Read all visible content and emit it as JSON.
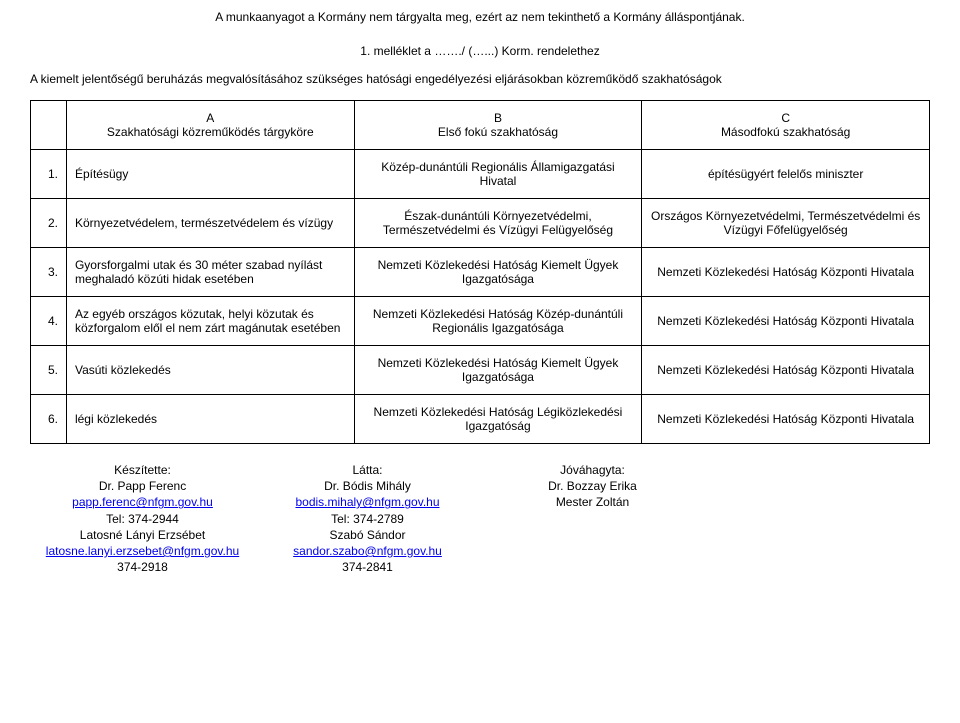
{
  "header_note": "A munkaanyagot a Kormány nem tárgyalta meg, ezért az nem tekinthető a Kormány álláspontjának.",
  "attachment": "1. melléklet a ……./ (…...) Korm. rendelethez",
  "intro": "A kiemelt jelentőségű beruházás megvalósításához szükséges hatósági engedélyezési eljárásokban közreműködő szakhatóságok",
  "table": {
    "head": {
      "a": "A\nSzakhatósági közreműködés tárgyköre",
      "b": "B\nElső fokú szakhatóság",
      "c": "C\nMásodfokú szakhatóság"
    },
    "rows": [
      {
        "n": "1.",
        "a": "Építésügy",
        "b": "Közép-dunántúli Regionális Államigazgatási Hivatal",
        "c": "építésügyért felelős miniszter"
      },
      {
        "n": "2.",
        "a": "Környezetvédelem, természetvédelem és vízügy",
        "b": "Észak-dunántúli Környezetvédelmi, Természetvédelmi és Vízügyi Felügyelőség",
        "c": "Országos Környezetvédelmi, Természetvédelmi és Vízügyi Főfelügyelőség"
      },
      {
        "n": "3.",
        "a": "Gyorsforgalmi utak és 30 méter szabad nyílást meghaladó közúti hidak esetében",
        "b": "Nemzeti Közlekedési Hatóság Kiemelt Ügyek Igazgatósága",
        "c": "Nemzeti Közlekedési Hatóság Központi Hivatala"
      },
      {
        "n": "4.",
        "a": "Az egyéb országos közutak, helyi közutak és közforgalom elől el nem zárt magánutak esetében",
        "b": "Nemzeti Közlekedési Hatóság Közép-dunántúli Regionális Igazgatósága",
        "c": "Nemzeti Közlekedési Hatóság Központi Hivatala"
      },
      {
        "n": "5.",
        "a": "Vasúti közlekedés",
        "b": "Nemzeti Közlekedési Hatóság Kiemelt Ügyek Igazgatósága",
        "c": "Nemzeti Közlekedési Hatóság Központi Hivatala"
      },
      {
        "n": "6.",
        "a": "légi közlekedés",
        "b": "Nemzeti Közlekedési Hatóság Légiközlekedési Igazgatóság",
        "c": "Nemzeti Közlekedési Hatóság Központi Hivatala"
      }
    ]
  },
  "footer": {
    "col1": {
      "l1": "Készítette:",
      "l2": "Dr. Papp Ferenc",
      "l3_link": "papp.ferenc@nfgm.gov.hu",
      "l4": "Tel: 374-2944",
      "l5": "Latosné Lányi Erzsébet",
      "l6_link": "latosne.lanyi.erzsebet@nfgm.gov.hu",
      "l7": "374-2918"
    },
    "col2": {
      "l1": "Látta:",
      "l2": "Dr. Bódis Mihály",
      "l3_link": "bodis.mihaly@nfgm.gov.hu",
      "l4": "Tel: 374-2789",
      "l5": "Szabó Sándor",
      "l6_link": "sandor.szabo@nfgm.gov.hu",
      "l7": "374-2841"
    },
    "col3": {
      "l1": "Jóváhagyta:",
      "l2": "Dr. Bozzay Erika",
      "l3": "Mester Zoltán"
    }
  }
}
